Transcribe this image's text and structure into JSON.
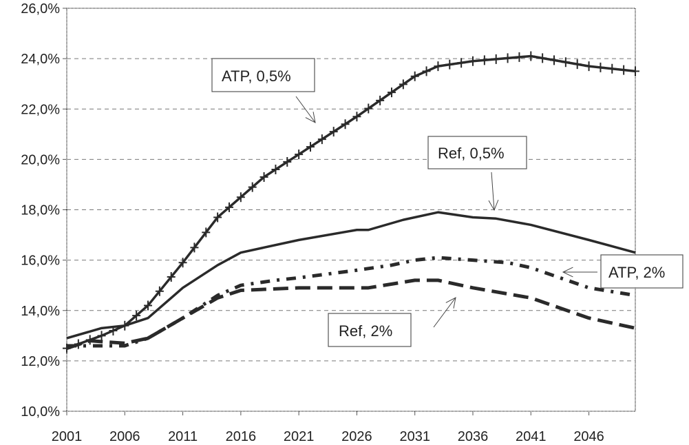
{
  "chart_data": {
    "type": "line",
    "title": "",
    "xlabel": "",
    "ylabel": "",
    "xlim": [
      2001,
      2050
    ],
    "ylim": [
      10,
      26
    ],
    "x_ticks": [
      2001,
      2006,
      2011,
      2016,
      2021,
      2026,
      2031,
      2036,
      2041,
      2046
    ],
    "x_tick_labels": [
      "2001",
      "2006",
      "2011",
      "2016",
      "2021",
      "2026",
      "2031",
      "2036",
      "2041",
      "2046"
    ],
    "y_ticks": [
      10,
      12,
      14,
      16,
      18,
      20,
      22,
      24,
      26
    ],
    "y_tick_labels": [
      "10,0%",
      "12,0%",
      "14,0%",
      "16,0%",
      "18,0%",
      "20,0%",
      "22,0%",
      "24,0%",
      "26,0%"
    ],
    "grid": true,
    "series": [
      {
        "name": "ATP, 0,5%",
        "style": "solid-plus",
        "x": [
          2001,
          2004,
          2006,
          2008,
          2011,
          2014,
          2016,
          2018,
          2021,
          2026,
          2031,
          2033,
          2036,
          2041,
          2046,
          2050
        ],
        "values": [
          12.5,
          13.0,
          13.4,
          14.2,
          15.9,
          17.7,
          18.5,
          19.3,
          20.2,
          21.7,
          23.3,
          23.7,
          23.9,
          24.1,
          23.7,
          23.5
        ]
      },
      {
        "name": "Ref, 0,5%",
        "style": "solid",
        "x": [
          2001,
          2004,
          2006,
          2008,
          2011,
          2014,
          2016,
          2018,
          2021,
          2026,
          2027,
          2030,
          2033,
          2036,
          2038,
          2041,
          2046,
          2050
        ],
        "values": [
          12.9,
          13.3,
          13.4,
          13.7,
          14.9,
          15.8,
          16.3,
          16.5,
          16.8,
          17.2,
          17.2,
          17.6,
          17.9,
          17.7,
          17.65,
          17.4,
          16.8,
          16.3
        ]
      },
      {
        "name": "ATP, 2%",
        "style": "dash-dot",
        "x": [
          2001,
          2004,
          2006,
          2008,
          2011,
          2014,
          2016,
          2019,
          2021,
          2026,
          2029,
          2031,
          2033,
          2036,
          2039,
          2041,
          2046,
          2050
        ],
        "values": [
          12.6,
          12.6,
          12.6,
          12.9,
          13.7,
          14.6,
          15.0,
          15.2,
          15.3,
          15.6,
          15.8,
          16.0,
          16.1,
          16.0,
          15.9,
          15.7,
          14.9,
          14.6
        ]
      },
      {
        "name": "Ref, 2%",
        "style": "dash",
        "x": [
          2001,
          2003,
          2006,
          2008,
          2011,
          2014,
          2016,
          2021,
          2027,
          2031,
          2033,
          2036,
          2041,
          2046,
          2050
        ],
        "values": [
          12.5,
          12.8,
          12.7,
          12.9,
          13.7,
          14.5,
          14.8,
          14.9,
          14.9,
          15.2,
          15.2,
          14.9,
          14.5,
          13.7,
          13.3
        ]
      }
    ],
    "annotations": [
      "ATP, 0,5%",
      "Ref, 0,5%",
      "ATP, 2%",
      "Ref, 2%"
    ]
  }
}
